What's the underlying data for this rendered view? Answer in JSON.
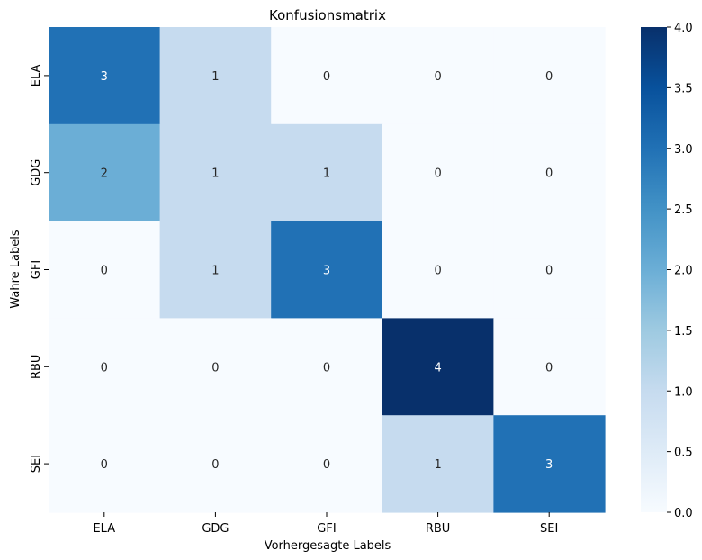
{
  "chart_data": {
    "type": "heatmap",
    "title": "Konfusionsmatrix",
    "xlabel": "Vorhergesagte Labels",
    "ylabel": "Wahre Labels",
    "x_categories": [
      "ELA",
      "GDG",
      "GFI",
      "RBU",
      "SEI"
    ],
    "y_categories": [
      "ELA",
      "GDG",
      "GFI",
      "RBU",
      "SEI"
    ],
    "values": [
      [
        3,
        1,
        0,
        0,
        0
      ],
      [
        2,
        1,
        1,
        0,
        0
      ],
      [
        0,
        1,
        3,
        0,
        0
      ],
      [
        0,
        0,
        0,
        4,
        0
      ],
      [
        0,
        0,
        0,
        1,
        3
      ]
    ],
    "colorbar": {
      "min": 0.0,
      "max": 4.0,
      "ticks": [
        "0.0",
        "0.5",
        "1.0",
        "1.5",
        "2.0",
        "2.5",
        "3.0",
        "3.5",
        "4.0"
      ],
      "colormap": "Blues"
    },
    "annotation_colors": {
      "dark_text": "#262626",
      "light_text": "#ffffff"
    }
  }
}
